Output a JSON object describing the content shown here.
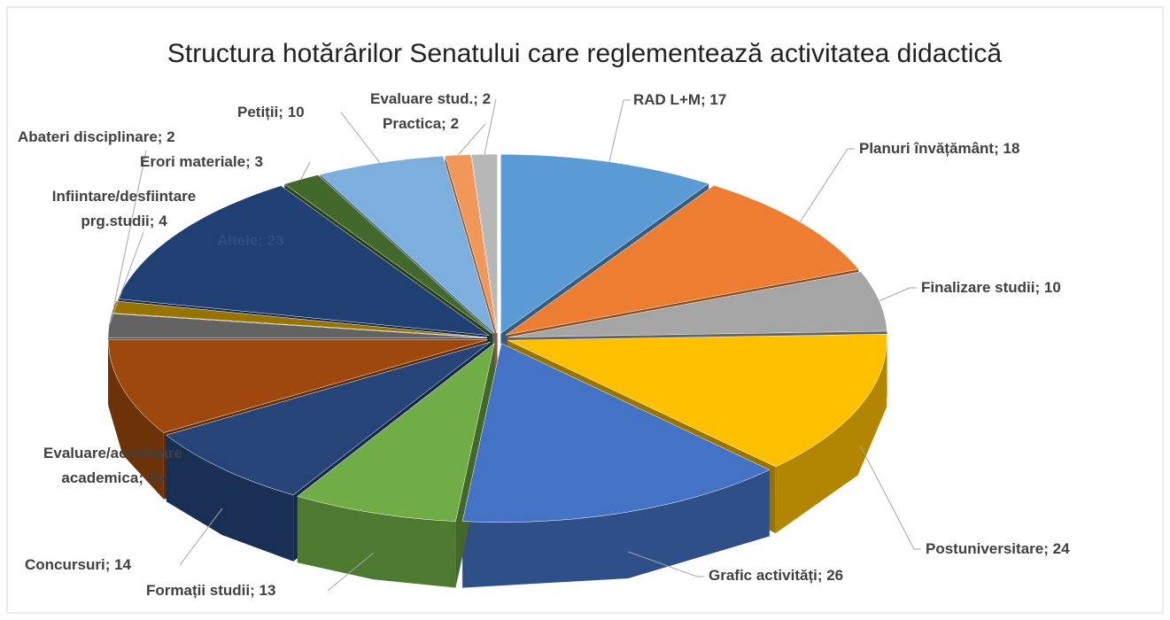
{
  "chart_data": {
    "type": "pie3d",
    "title": "Structura hotărârilor Senatului care reglementează activitatea didactică",
    "label_separator": "; ",
    "categories": [
      "RAD L+M",
      "Planuri învățământ",
      "Finalizare studii",
      "Postuniversitare",
      "Grafic activități",
      "Formații studii",
      "Concursuri",
      "Evaluare/acreditare academica",
      "Infiintare/desfiintare prg.studii",
      "Abateri disciplinare",
      "Altele",
      "Erori materiale",
      "Petiții",
      "Practica",
      "Evaluare stud."
    ],
    "values": [
      17,
      18,
      10,
      24,
      26,
      13,
      14,
      16,
      4,
      2,
      23,
      3,
      10,
      2,
      2
    ],
    "colors": [
      "#5b9bd5",
      "#ed7d31",
      "#a5a5a5",
      "#ffc000",
      "#4472c4",
      "#70ad47",
      "#264478",
      "#9e480e",
      "#636363",
      "#997300",
      "#203f72",
      "#43682b",
      "#7cafdd",
      "#f1975a",
      "#b7b7b7"
    ]
  }
}
